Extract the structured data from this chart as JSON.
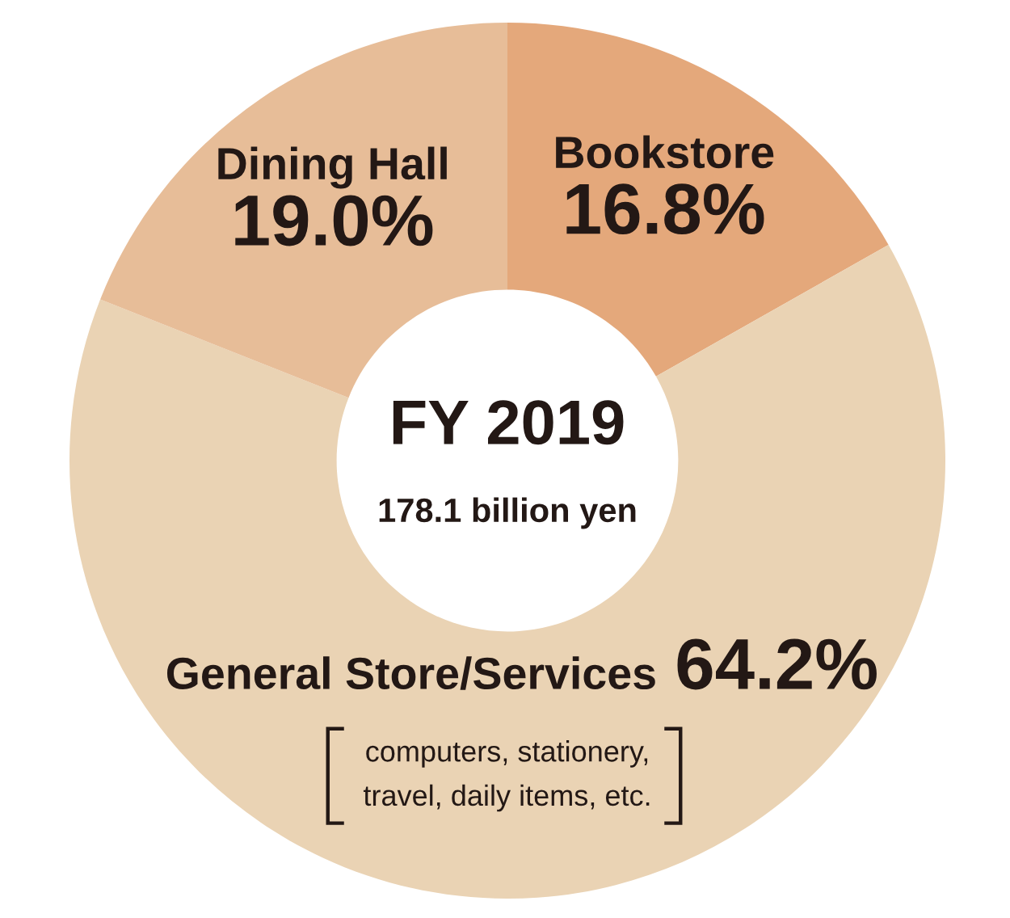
{
  "chart_data": {
    "type": "donut",
    "title": "FY 2019",
    "subtitle": "178.1 billion yen",
    "categories": [
      "Bookstore",
      "General Store/Services",
      "Dining Hall"
    ],
    "values": [
      16.8,
      64.2,
      19.0
    ],
    "value_labels": [
      "16.8%",
      "64.2%",
      "19.0%"
    ],
    "colors": [
      "#e4a87b",
      "#ead3b4",
      "#e7bd98"
    ],
    "annotations": [
      "computers, stationery,\ntravel, daily items, etc."
    ]
  }
}
